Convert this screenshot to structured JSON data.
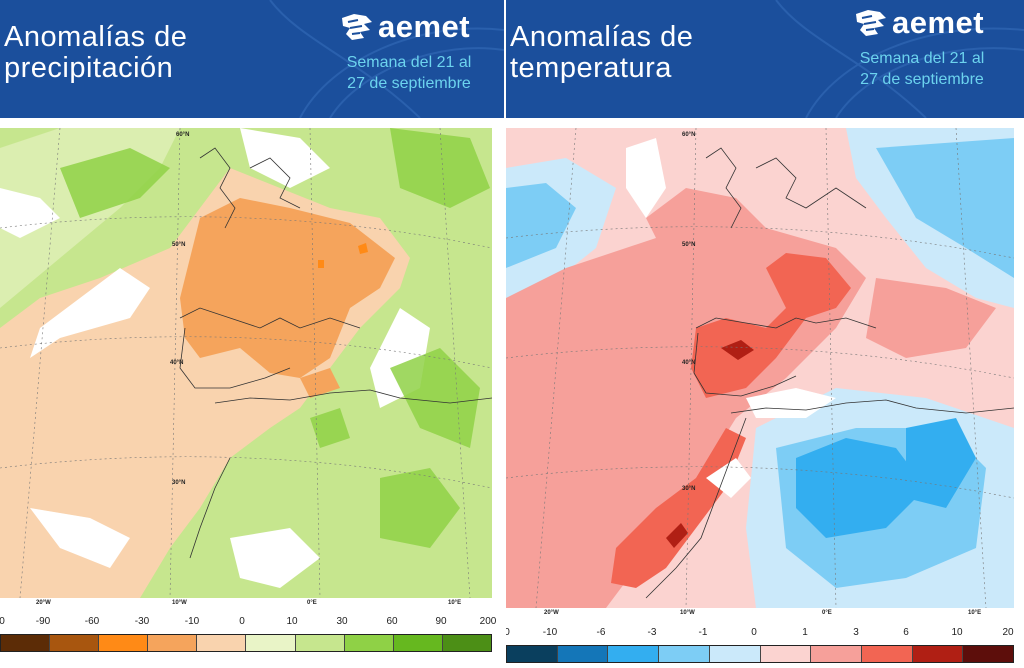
{
  "precip": {
    "title_line1": "Anomalías de",
    "title_line2": "precipitación",
    "brand": "aemet",
    "week_line1": "Semana del 21 al",
    "week_line2": "27 de septiembre",
    "lon_labels": [
      "20°W",
      "10°W",
      "0°E",
      "10°E"
    ],
    "lat_labels": [
      "60°N",
      "50°N",
      "40°N",
      "30°N"
    ],
    "scale_labels": [
      "0",
      "-90",
      "-60",
      "-30",
      "-10",
      "0",
      "10",
      "30",
      "60",
      "90",
      "200"
    ],
    "scale_colors": [
      "#5c2c06",
      "#a8560f",
      "#ff8a16",
      "#f5a45c",
      "#f9d3ae",
      "#e9f4c7",
      "#c6e68e",
      "#8fd146",
      "#66b81f",
      "#4c8f16"
    ]
  },
  "temp": {
    "title_line1": "Anomalías de",
    "title_line2": "temperatura",
    "brand": "aemet",
    "week_line1": "Semana del 21 al",
    "week_line2": "27 de septiembre",
    "lon_labels": [
      "20°W",
      "10°W",
      "0°E",
      "10°E"
    ],
    "lat_labels": [
      "60°N",
      "50°N",
      "40°N",
      "30°N"
    ],
    "scale_labels": [
      "0",
      "-10",
      "-6",
      "-3",
      "-1",
      "0",
      "1",
      "3",
      "6",
      "10",
      "20"
    ],
    "scale_colors": [
      "#0a3f5e",
      "#1476b8",
      "#33aef0",
      "#7dcdf5",
      "#cbe9fa",
      "#fbd3d0",
      "#f6a09a",
      "#f26553",
      "#b01f14",
      "#5d0e0b"
    ]
  }
}
